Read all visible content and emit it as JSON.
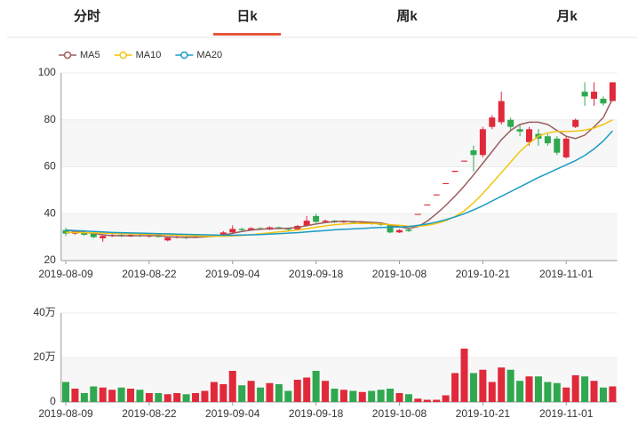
{
  "tabs": [
    "分时",
    "日k",
    "周k",
    "月k"
  ],
  "active_tab": 1,
  "chart_data": [
    {
      "type": "candlestick",
      "up_color": "#e0293a",
      "down_color": "#2fa84f",
      "grid": true,
      "categories": [
        "2019-08-09",
        null,
        null,
        null,
        null,
        null,
        null,
        null,
        null,
        "2019-08-22",
        null,
        null,
        null,
        null,
        null,
        null,
        null,
        null,
        "2019-09-04",
        null,
        null,
        null,
        null,
        null,
        null,
        null,
        null,
        "2019-09-18",
        null,
        null,
        null,
        null,
        null,
        null,
        null,
        null,
        "2019-10-08",
        null,
        null,
        null,
        null,
        null,
        null,
        null,
        null,
        "2019-10-21",
        null,
        null,
        null,
        null,
        null,
        null,
        null,
        null,
        "2019-11-01",
        null,
        null,
        null,
        null,
        null
      ],
      "open": [
        33,
        31.5,
        32,
        31.5,
        29.5,
        30.5,
        31,
        30.5,
        30.8,
        30.2,
        30.6,
        28.6,
        29.8,
        30,
        29.8,
        30.3,
        30.5,
        30.8,
        32,
        33.5,
        33,
        33.8,
        33.2,
        34.2,
        33.7,
        33.3,
        34.8,
        39,
        36.5,
        37,
        36.3,
        36.8,
        36.2,
        36.2,
        35.6,
        35.3,
        32,
        33.2,
        39.5,
        43.5,
        47.8,
        52.6,
        57.8,
        62.2,
        67,
        65,
        77,
        79,
        80,
        76,
        70.5,
        74,
        73,
        72,
        64,
        77,
        92,
        89,
        89,
        88
      ],
      "close": [
        31.5,
        32.5,
        31,
        30,
        30.5,
        31,
        30.5,
        31,
        30.4,
        30.8,
        30.1,
        29.8,
        30.2,
        29.6,
        30.3,
        30.6,
        30.8,
        32,
        33.5,
        33,
        33.8,
        33.2,
        34.2,
        33.7,
        33.2,
        34.8,
        37,
        36.5,
        37,
        36.3,
        36.8,
        36.2,
        36.5,
        35.6,
        35.3,
        32,
        33,
        32.6,
        39.9,
        43.9,
        48.2,
        53,
        58.3,
        62.6,
        65,
        76,
        81,
        88,
        77,
        75,
        76,
        72,
        70,
        66,
        72,
        80,
        90,
        92,
        87,
        96
      ],
      "high": [
        34,
        33,
        32.5,
        32,
        31,
        31.5,
        31.5,
        31.5,
        31.2,
        31.2,
        31,
        30.2,
        30.6,
        30.4,
        30.6,
        31,
        31.2,
        32.6,
        35,
        34,
        34.2,
        34.2,
        34.6,
        34.5,
        34,
        35.2,
        39,
        40,
        37.5,
        37.3,
        37.2,
        37,
        36.9,
        36.5,
        35.9,
        35.5,
        33.4,
        33.5,
        39.9,
        43.9,
        48.2,
        53,
        58.3,
        62.6,
        69,
        77,
        82,
        92,
        81,
        78,
        77,
        76,
        74,
        73,
        73,
        80.5,
        96,
        96,
        90,
        96
      ],
      "low": [
        30.5,
        31,
        30.5,
        29.5,
        28,
        30,
        30,
        30,
        30,
        29.8,
        29.8,
        28.2,
        29.4,
        29.2,
        29.5,
        30,
        30.2,
        30.5,
        31.8,
        32.6,
        32.8,
        33,
        33,
        33.4,
        32.8,
        33,
        34.5,
        36,
        36,
        36,
        36,
        35.9,
        35.9,
        35.3,
        34.8,
        31.6,
        31.8,
        32.2,
        39.5,
        43.5,
        47.8,
        52.6,
        57.8,
        62.2,
        58,
        64,
        76,
        78,
        75,
        73,
        69,
        69,
        69,
        65,
        63.5,
        76.5,
        86,
        86,
        86,
        88
      ],
      "series": [
        {
          "name": "MA5",
          "color": "#9b5e5e",
          "values": [
            33,
            32.5,
            32,
            31.6,
            31,
            30.6,
            30.6,
            30.5,
            30.6,
            30.6,
            30.6,
            30.2,
            30,
            29.9,
            29.9,
            30.1,
            30.4,
            30.9,
            31.6,
            32.4,
            33,
            33.4,
            33.6,
            33.7,
            33.8,
            34.1,
            34.9,
            35.6,
            36.2,
            36.6,
            36.8,
            36.6,
            36.5,
            36.3,
            36,
            35.2,
            34.4,
            33.7,
            34.5,
            36.8,
            40,
            43.5,
            47.5,
            51.8,
            56.5,
            61.5,
            66.5,
            71.5,
            75.5,
            78,
            79,
            79,
            78,
            75.5,
            73,
            72,
            73.5,
            77,
            81,
            89
          ]
        },
        {
          "name": "MA10",
          "color": "#f2c40f",
          "values": [
            32,
            32,
            31.9,
            31.8,
            31.7,
            31.6,
            31.5,
            31.4,
            31.3,
            31.2,
            31.1,
            31,
            30.8,
            30.6,
            30.5,
            30.4,
            30.4,
            30.4,
            30.5,
            30.7,
            31,
            31.4,
            31.8,
            32.2,
            32.6,
            33,
            33.6,
            34.2,
            34.8,
            35.3,
            35.6,
            35.8,
            35.9,
            35.8,
            35.6,
            35.3,
            35,
            34.7,
            34.6,
            35,
            35.8,
            37,
            38.8,
            41.2,
            44.6,
            48.6,
            53,
            57.5,
            62,
            66.5,
            70,
            73,
            74.5,
            75,
            75,
            75.2,
            75.6,
            76.5,
            78,
            80
          ]
        },
        {
          "name": "MA20",
          "color": "#1a9bc5",
          "values": [
            33,
            32.8,
            32.6,
            32.4,
            32.2,
            32,
            31.9,
            31.8,
            31.7,
            31.6,
            31.5,
            31.4,
            31.3,
            31.2,
            31.1,
            31,
            30.9,
            30.8,
            30.8,
            30.9,
            31,
            31.1,
            31.3,
            31.5,
            31.7,
            31.9,
            32.2,
            32.5,
            32.8,
            33.1,
            33.3,
            33.5,
            33.7,
            33.9,
            34.1,
            34.2,
            34.3,
            34.5,
            35,
            35.6,
            36.4,
            37.4,
            38.6,
            40,
            41.6,
            43.4,
            45.4,
            47.4,
            49.4,
            51.4,
            53.4,
            55.4,
            57.2,
            59,
            60.8,
            62.6,
            64.8,
            67.6,
            71,
            75.3
          ]
        }
      ],
      "ylim": [
        20,
        100
      ],
      "yticks": [
        20,
        40,
        60,
        80,
        100
      ]
    },
    {
      "type": "bar",
      "grid": true,
      "categories": [
        "2019-08-09",
        null,
        null,
        null,
        null,
        null,
        null,
        null,
        null,
        "2019-08-22",
        null,
        null,
        null,
        null,
        null,
        null,
        null,
        null,
        "2019-09-04",
        null,
        null,
        null,
        null,
        null,
        null,
        null,
        null,
        "2019-09-18",
        null,
        null,
        null,
        null,
        null,
        null,
        null,
        null,
        "2019-10-08",
        null,
        null,
        null,
        null,
        null,
        null,
        null,
        null,
        "2019-10-21",
        null,
        null,
        null,
        null,
        null,
        null,
        null,
        null,
        "2019-11-01",
        null,
        null,
        null,
        null,
        null
      ],
      "values": [
        9,
        6,
        4,
        7,
        6.5,
        5.5,
        6.5,
        6,
        5.5,
        4,
        4,
        3.5,
        4,
        3.5,
        4,
        5,
        9,
        8,
        14,
        7.5,
        9.5,
        6.5,
        8.5,
        8,
        5,
        10,
        11,
        14,
        9.5,
        6,
        5.5,
        5,
        4.5,
        5,
        5.5,
        6,
        4,
        3.5,
        1.5,
        1,
        1,
        3,
        13,
        24,
        13,
        14.5,
        9,
        15.5,
        14.5,
        9.5,
        11.5,
        11.5,
        9,
        8.5,
        6.5,
        12,
        11.5,
        9.5,
        6.5,
        7
      ],
      "ylim": [
        0,
        40
      ],
      "yticks": [
        0,
        {
          "value": 20,
          "label": "20万"
        },
        {
          "value": 40,
          "label": "40万"
        }
      ]
    }
  ]
}
